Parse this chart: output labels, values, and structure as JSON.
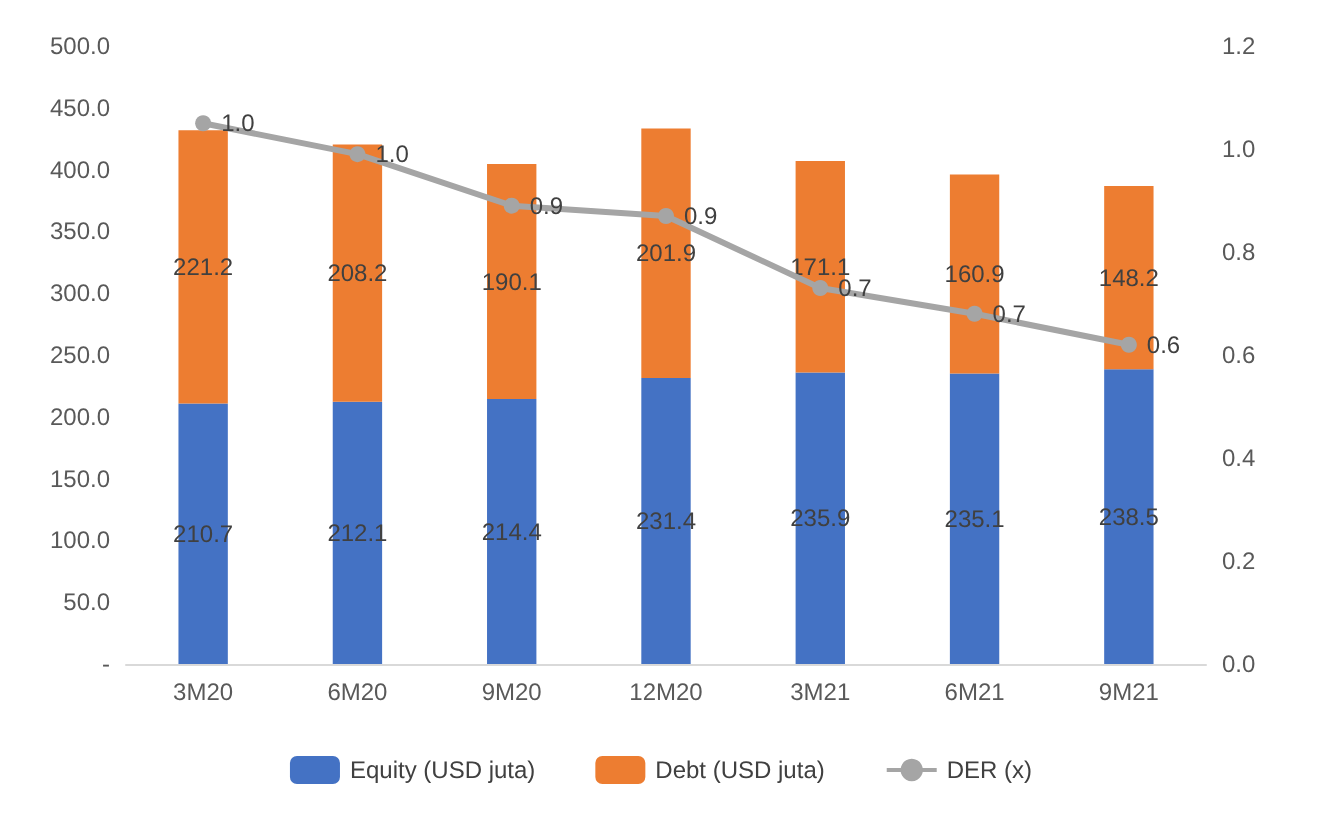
{
  "chart_data": {
    "type": "bar",
    "stacked": true,
    "categories": [
      "3M20",
      "6M20",
      "9M20",
      "12M20",
      "3M21",
      "6M21",
      "9M21"
    ],
    "series": [
      {
        "name": "Equity (USD juta)",
        "color": "#4472c4",
        "values": [
          210.7,
          212.1,
          214.4,
          231.4,
          235.9,
          235.1,
          238.5
        ]
      },
      {
        "name": "Debt (USD juta)",
        "color": "#ed7d31",
        "values": [
          221.2,
          208.2,
          190.1,
          201.9,
          171.1,
          160.9,
          148.2
        ]
      },
      {
        "name": "DER (x)",
        "type": "line",
        "axis": "y2",
        "color": "#a5a5a5",
        "values": [
          1.05,
          0.99,
          0.89,
          0.87,
          0.73,
          0.68,
          0.62
        ],
        "value_labels": [
          "1.0",
          "1.0",
          "0.9",
          "0.9",
          "0.7",
          "0.7",
          "0.6"
        ]
      }
    ],
    "data_labels": true,
    "marker": "circle",
    "line_style": "solid",
    "legend": "bottom",
    "grid": false,
    "ylim": [
      0,
      500
    ],
    "yticks": [
      {
        "value": 0,
        "label": "-"
      },
      {
        "value": 50,
        "label": "50.0"
      },
      {
        "value": 100,
        "label": "100.0"
      },
      {
        "value": 150,
        "label": "150.0"
      },
      {
        "value": 200,
        "label": "200.0"
      },
      {
        "value": 250,
        "label": "250.0"
      },
      {
        "value": 300,
        "label": "300.0"
      },
      {
        "value": 350,
        "label": "350.0"
      },
      {
        "value": 400,
        "label": "400.0"
      },
      {
        "value": 450,
        "label": "450.0"
      },
      {
        "value": 500,
        "label": "500.0"
      }
    ],
    "y2lim": [
      0,
      1.2
    ],
    "y2ticks": [
      {
        "value": 0,
        "label": "0.0"
      },
      {
        "value": 0.2,
        "label": "0.2"
      },
      {
        "value": 0.4,
        "label": "0.4"
      },
      {
        "value": 0.6,
        "label": "0.6"
      },
      {
        "value": 0.8,
        "label": "0.8"
      },
      {
        "value": 1,
        "label": "1.0"
      },
      {
        "value": 1.2,
        "label": "1.2"
      }
    ]
  }
}
